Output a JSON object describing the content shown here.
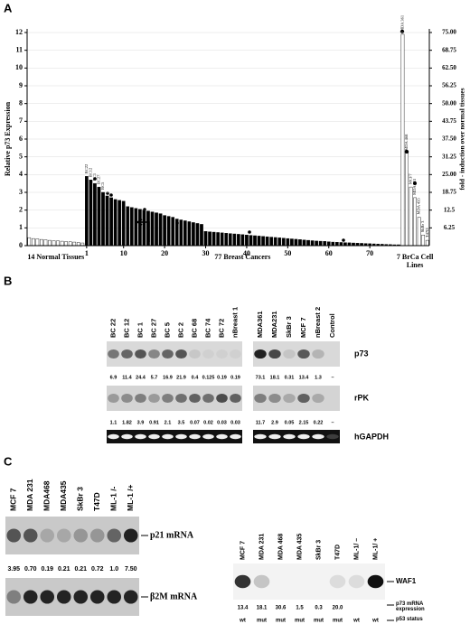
{
  "panel_labels": [
    "A",
    "B",
    "C"
  ],
  "chart_data": {
    "type": "bar",
    "y_label": "Relative p73 Expression",
    "y2_label": "fold - induction over normal tissues",
    "ylim": [
      0,
      12
    ],
    "yticks": [
      0,
      1,
      2,
      3,
      4,
      5,
      6,
      7,
      8,
      9,
      10,
      11,
      12
    ],
    "y2lim": [
      0,
      75
    ],
    "y2ticks": [
      6.25,
      12.5,
      18.75,
      {
        "value": 25,
        "label": "25.00"
      },
      31.25,
      {
        "value": 37.5,
        "label": "37.50"
      },
      43.75,
      {
        "value": 50,
        "label": "50.00"
      },
      56.25,
      {
        "value": 62.5,
        "label": "62.50"
      },
      68.75,
      {
        "value": 75,
        "label": "75.00"
      }
    ],
    "grid": true,
    "series": [
      {
        "name": "14 Normal Tissues",
        "color": "#ffffff",
        "values": [
          0.45,
          0.4,
          0.38,
          0.35,
          0.33,
          0.3,
          0.28,
          0.27,
          0.25,
          0.23,
          0.22,
          0.2,
          0.18,
          0.15
        ]
      },
      {
        "name": "77 Breast Cancers",
        "color": "#000000",
        "labels": [
          "BC22",
          "BC12",
          "BC1",
          "BC27",
          "BC5"
        ],
        "values": [
          3.9,
          3.7,
          3.5,
          3.3,
          3.0,
          2.8,
          2.7,
          2.6,
          2.55,
          2.5,
          2.2,
          2.15,
          2.1,
          2.05,
          2.0,
          1.95,
          1.9,
          1.85,
          1.8,
          1.7,
          1.65,
          1.6,
          1.5,
          1.45,
          1.4,
          1.35,
          1.3,
          1.25,
          1.2,
          0.8,
          0.78,
          0.76,
          0.74,
          0.72,
          0.7,
          0.68,
          0.66,
          0.64,
          0.62,
          0.6,
          0.58,
          0.56,
          0.54,
          0.52,
          0.5,
          0.48,
          0.46,
          0.44,
          0.42,
          0.4,
          0.38,
          0.36,
          0.34,
          0.32,
          0.3,
          0.28,
          0.26,
          0.25,
          0.24,
          0.22,
          0.2,
          0.19,
          0.18,
          0.17,
          0.16,
          0.15,
          0.14,
          0.13,
          0.12,
          0.11,
          0.1,
          0.09,
          0.08,
          0.07,
          0.06,
          0.05,
          0.05
        ]
      },
      {
        "name": "7 BrCa Cell Lines",
        "color": "#ffffff",
        "labels": [
          "MDA 361",
          "MDA 468",
          "MCF7",
          "MDA 231",
          "MDA 435",
          "SkBr 3",
          "T47D"
        ],
        "values": [
          11.9,
          5.2,
          3.3,
          2.7,
          1.6,
          0.6,
          0.3
        ]
      }
    ],
    "xticks": [
      1,
      10,
      20,
      30,
      40,
      50,
      60,
      70
    ]
  },
  "panel_b": {
    "rows": [
      "p73",
      "rPK",
      "hGAPDH"
    ],
    "left": {
      "lanes": [
        "BC 22",
        "BC 12",
        "BC 1",
        "BC 27",
        "BC 5",
        "BC 2",
        "BC 68",
        "BC 74",
        "BC 72",
        "nBreast 1"
      ],
      "p73": [
        6.9,
        11.4,
        24.4,
        5.7,
        16.9,
        21.9,
        0.4,
        0.125,
        0.19,
        0.19
      ],
      "rpk": [
        1.1,
        1.82,
        3.9,
        0.91,
        2.1,
        3.5,
        0.07,
        0.02,
        0.03,
        0.03
      ]
    },
    "right": {
      "lanes": [
        "MDA361",
        "MDA231",
        "SkBr 3",
        "MCF 7",
        "nBreast 2",
        "Control"
      ],
      "p73": [
        73.1,
        18.1,
        0.31,
        13.4,
        1.3,
        "–"
      ],
      "rpk": [
        11.7,
        2.9,
        0.05,
        2.15,
        0.22,
        "–"
      ]
    }
  },
  "panel_c": {
    "left": {
      "lanes": [
        "MCF 7",
        "MDA 231",
        "MDA468",
        "MDA435",
        "SkBr 3",
        "T47D",
        "ML-1 /-",
        "ML-1 /+"
      ],
      "p21": [
        "3.95",
        "0.70",
        "0.19",
        "0.21",
        "0.21",
        "0.72",
        "1.0",
        "7.50"
      ],
      "row_labels": [
        "p21 mRNA",
        "β2M mRNA"
      ]
    },
    "right": {
      "lanes": [
        "MCF 7",
        "MDA 231",
        "MDA 468",
        "MDA 435",
        "SkBr 3",
        "T47D",
        "ML-1/ –",
        "ML-1/ +"
      ],
      "p73_mrna": [
        "13.4",
        "18.1",
        "30.6",
        "1.5",
        "0.3",
        "20.0"
      ],
      "p53_status": [
        "wt",
        "mut",
        "mut",
        "mut",
        "mut",
        "mut",
        "wt",
        "wt"
      ],
      "row_labels": [
        "WAF1",
        "p73 mRNA expression",
        "p53 status"
      ]
    }
  }
}
